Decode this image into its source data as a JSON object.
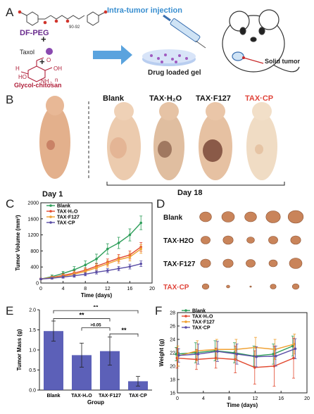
{
  "panels": {
    "a": "A",
    "b": "B",
    "c": "C",
    "d": "D",
    "e": "E",
    "f": "F"
  },
  "panel_a": {
    "df_peg": "DF-PEG",
    "peg_subscript": "90-92",
    "plus1": "+",
    "taxol": "Taxol",
    "plus2": "+",
    "glycol_chitosan": "Glycol-chitosan",
    "injection": "Intra-tumor injection",
    "drug_gel": "Drug loaded gel",
    "solid_tumor": "Solid tumor",
    "chem_labels": [
      "H",
      "O",
      "OH",
      "HO",
      "NH",
      "2",
      "n"
    ],
    "colors": {
      "purple": "#6a2c8e",
      "red": "#b0203a",
      "blue": "#3a8fd0",
      "gel": "#8fb3e8"
    }
  },
  "panel_b": {
    "groups": [
      "Blank",
      "TAX·H₂O",
      "TAX·F127",
      "TAX·CP"
    ],
    "highlight_color": "#e0443a",
    "day1": "Day 1",
    "day18": "Day 18"
  },
  "panel_d": {
    "rows": [
      "Blank",
      "TAX·H2O",
      "TAX·F127",
      "TAX·CP"
    ],
    "tumor_sizes": [
      [
        0.7,
        0.75,
        0.7,
        0.85,
        0.9
      ],
      [
        0.55,
        0.6,
        0.45,
        0.55,
        0.6
      ],
      [
        0.6,
        0.6,
        0.55,
        0.5,
        0.75
      ],
      [
        0.4,
        0.2,
        0.1,
        0.35,
        0.4
      ]
    ],
    "tumor_color": "#c9845a"
  },
  "chart_data": [
    {
      "type": "line",
      "panel": "C",
      "xlabel": "Time (days)",
      "ylabel": "Tumor Volume (mm³)",
      "xlim": [
        0,
        20
      ],
      "ylim": [
        0,
        2000
      ],
      "xticks": [
        0,
        4,
        8,
        12,
        16,
        20
      ],
      "yticks": [
        0,
        400,
        800,
        1200,
        1600,
        2000
      ],
      "x": [
        0,
        2,
        4,
        6,
        8,
        10,
        12,
        14,
        16,
        18
      ],
      "series": [
        {
          "name": "Blank",
          "color": "#2e9e5a",
          "values": [
            100,
            160,
            240,
            330,
            450,
            600,
            850,
            1000,
            1200,
            1500
          ],
          "errors": [
            20,
            40,
            50,
            80,
            100,
            120,
            130,
            140,
            150,
            170
          ]
        },
        {
          "name": "TAX·H₂O",
          "color": "#e2492f",
          "values": [
            100,
            140,
            190,
            250,
            320,
            420,
            520,
            620,
            700,
            900
          ],
          "errors": [
            20,
            30,
            40,
            50,
            60,
            70,
            80,
            90,
            100,
            110
          ]
        },
        {
          "name": "TAX·F127",
          "color": "#f0a030",
          "values": [
            100,
            130,
            170,
            220,
            290,
            380,
            480,
            580,
            650,
            850
          ],
          "errors": [
            20,
            30,
            40,
            50,
            60,
            70,
            80,
            90,
            100,
            110
          ]
        },
        {
          "name": "TAX·CP",
          "color": "#5b4ea6",
          "values": [
            100,
            120,
            150,
            180,
            220,
            270,
            310,
            360,
            410,
            480
          ],
          "errors": [
            15,
            20,
            30,
            35,
            40,
            45,
            50,
            55,
            60,
            70
          ]
        }
      ],
      "legend": "top-left"
    },
    {
      "type": "bar",
      "panel": "E",
      "xlabel": "Group",
      "ylabel": "Tumor Mass (g)",
      "categories": [
        "Blank",
        "TAX·H₂O",
        "TAX·F127",
        "TAX·CP"
      ],
      "values": [
        1.47,
        0.87,
        0.97,
        0.22
      ],
      "errors": [
        0.25,
        0.3,
        0.35,
        0.12
      ],
      "ylim": [
        0,
        2.0
      ],
      "yticks": [
        0,
        0.5,
        1.0,
        1.5,
        2.0
      ],
      "bar_color": "#4a4fb0",
      "annotations": [
        "**",
        ">0.05",
        "**",
        "**"
      ]
    },
    {
      "type": "line",
      "panel": "F",
      "xlabel": "Time (days)",
      "ylabel": "Weight (g)",
      "xlim": [
        0,
        20
      ],
      "ylim": [
        16,
        28
      ],
      "xticks": [
        0,
        4,
        8,
        12,
        16,
        20
      ],
      "yticks": [
        16,
        18,
        20,
        22,
        24,
        26,
        28
      ],
      "x": [
        0,
        3,
        6,
        9,
        12,
        15,
        18
      ],
      "series": [
        {
          "name": "Blank",
          "color": "#2e9e5a",
          "values": [
            21.8,
            22.0,
            22.3,
            22.0,
            21.5,
            21.8,
            23.0
          ],
          "errors": [
            1.0,
            1.5,
            1.5,
            1.5,
            1.5,
            1.5,
            1.5
          ]
        },
        {
          "name": "TAX·H₂O",
          "color": "#e2492f",
          "values": [
            21.2,
            21.0,
            21.2,
            21.0,
            19.8,
            20.0,
            21.2
          ],
          "errors": [
            1.5,
            1.5,
            1.5,
            2.0,
            2.5,
            3.0,
            3.0
          ]
        },
        {
          "name": "TAX·F127",
          "color": "#f0a030",
          "values": [
            21.5,
            22.3,
            22.5,
            22.5,
            22.8,
            22.5,
            23.3
          ],
          "errors": [
            1.5,
            1.5,
            1.5,
            1.5,
            1.5,
            1.5,
            1.5
          ]
        },
        {
          "name": "TAX·CP",
          "color": "#5b4ea6",
          "values": [
            21.6,
            21.8,
            22.2,
            21.8,
            21.4,
            21.5,
            22.6
          ],
          "errors": [
            1.0,
            1.5,
            1.5,
            1.5,
            1.5,
            1.5,
            1.5
          ]
        }
      ],
      "legend": "top-left"
    }
  ]
}
